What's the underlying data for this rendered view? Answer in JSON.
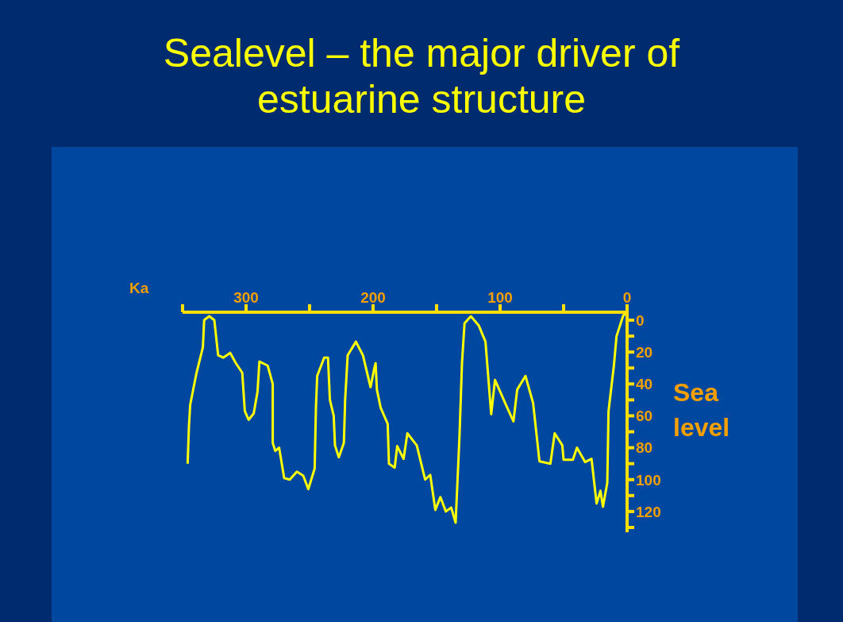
{
  "chart_data": {
    "type": "line",
    "title": "Sealevel – the major driver of estuarine structure",
    "xlabel": "Ka",
    "ylabel": "Sea level",
    "x": [
      346,
      345,
      344,
      339,
      334,
      333,
      329,
      325,
      322,
      318,
      312.5,
      308,
      303,
      301,
      298,
      294,
      291,
      289.5,
      283,
      279,
      279,
      277,
      274,
      270,
      265.6,
      260,
      255,
      251,
      246,
      245,
      244,
      238.5,
      235.5,
      234,
      231,
      230,
      227,
      223,
      222,
      220,
      213.5,
      208,
      202,
      199,
      198,
      197,
      194,
      188.5,
      187.5,
      183,
      181,
      176,
      173,
      165.6,
      159,
      155,
      151,
      147,
      142.7,
      138.5,
      135,
      132,
      130,
      128,
      123,
      116.7,
      111.5,
      107,
      104,
      96,
      89.5,
      86.5,
      80,
      74,
      69,
      60.4,
      57,
      51,
      50,
      42.7,
      39.5,
      33,
      28,
      24,
      21,
      19,
      15.6,
      14.6,
      10.4,
      8.3,
      3,
      1
    ],
    "series": [
      {
        "color": "#ffff00",
        "values": [
          90,
          67,
          53,
          33,
          17,
          0,
          -2.5,
          0,
          22,
          23.5,
          20.5,
          27,
          33,
          57,
          62.5,
          58.5,
          45,
          26,
          28.5,
          40,
          77,
          82,
          80,
          99,
          100,
          95,
          97.5,
          106,
          93,
          55,
          35,
          23.5,
          23.5,
          50,
          60,
          78.5,
          86,
          77,
          50,
          22,
          13.5,
          22,
          42,
          30,
          27,
          43.5,
          55,
          65,
          90,
          92.5,
          79,
          87,
          71,
          78.5,
          100,
          97,
          119,
          111,
          120,
          117.5,
          127,
          73.5,
          27,
          2,
          -2.5,
          3.5,
          13.5,
          59,
          37.5,
          52,
          63.5,
          43.5,
          35,
          52,
          88.5,
          90,
          71,
          78.5,
          87.5,
          87.5,
          80,
          89,
          87,
          115,
          107,
          117,
          102,
          57,
          28.5,
          10,
          -3,
          -4
        ]
      }
    ],
    "xlim": [
      350,
      0
    ],
    "xticks": [
      {
        "value": 350,
        "label": null
      },
      300,
      {
        "value": 250,
        "label": null
      },
      200,
      {
        "value": 150,
        "label": null
      },
      100,
      {
        "value": 50,
        "label": null
      },
      0
    ],
    "ylim": [
      133,
      -5
    ],
    "yticks": [
      0,
      {
        "value": 10,
        "label": null
      },
      20,
      {
        "value": 30,
        "label": null
      },
      40,
      {
        "value": 50,
        "label": null
      },
      60,
      {
        "value": 70,
        "label": null
      },
      80,
      {
        "value": 90,
        "label": null
      },
      100,
      {
        "value": 110,
        "label": null
      },
      120,
      {
        "value": 130,
        "label": null
      }
    ]
  }
}
